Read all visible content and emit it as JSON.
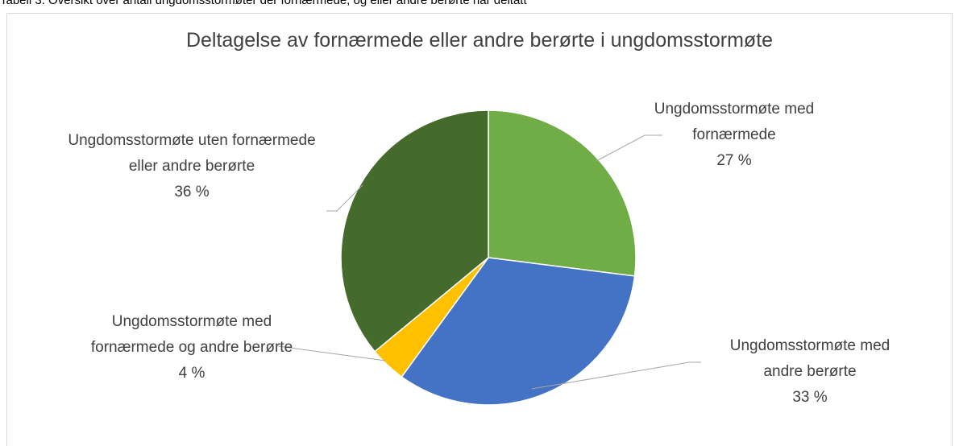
{
  "caption": "Tabell 3. Oversikt over antall ungdomsstormøter der fornærmede, og eller andre berørte har deltatt",
  "chart_data": {
    "type": "pie",
    "title": "Deltagelse av fornærmede eller andre berørte i ungdomsstormøte",
    "categories": [
      "Ungdomsstormøte med fornærmede",
      "Ungdomsstormøte med andre berørte",
      "Ungdomsstormøte med fornærmede og andre berørte",
      "Ungdomsstormøte uten fornærmede eller andre berørte"
    ],
    "values": [
      27,
      33,
      4,
      36
    ],
    "value_labels": [
      "27 %",
      "33 %",
      "4 %",
      "36 %"
    ],
    "colors": [
      "#70ad47",
      "#4472c4",
      "#ffc000",
      "#446a2c"
    ]
  }
}
